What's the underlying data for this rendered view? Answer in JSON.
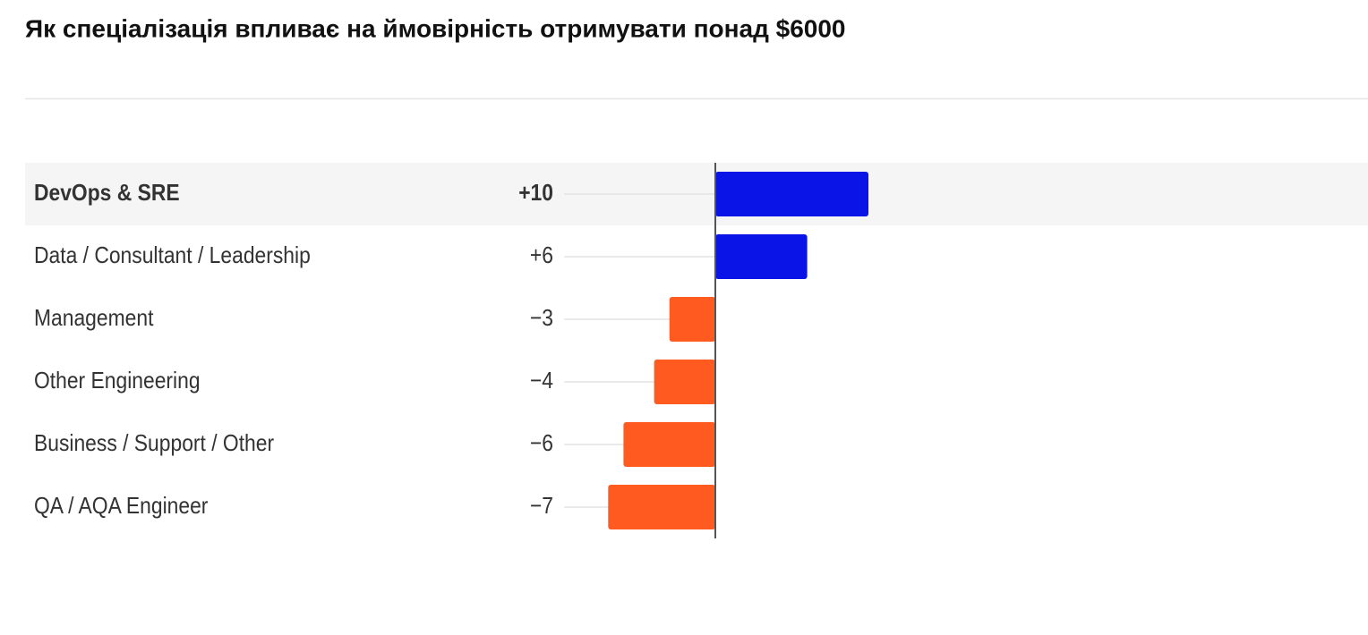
{
  "chart_data": {
    "type": "diverging-bar",
    "title": "Як спеціалізація впливає на ймовірність отримувати понад $6000",
    "categories": [
      "DevOps & SRE",
      "Data / Consultant / Leadership",
      "Management",
      "Other Engineering",
      "Business / Support / Other",
      "QA / AQA Engineer"
    ],
    "values": [
      10,
      6,
      -3,
      -4,
      -6,
      -7
    ],
    "value_labels": [
      "+10",
      "+6",
      "−3",
      "−4",
      "−6",
      "−7"
    ],
    "positive_color": "#0a14e6",
    "negative_color": "#ff5a1f",
    "highlight_index": 0
  }
}
